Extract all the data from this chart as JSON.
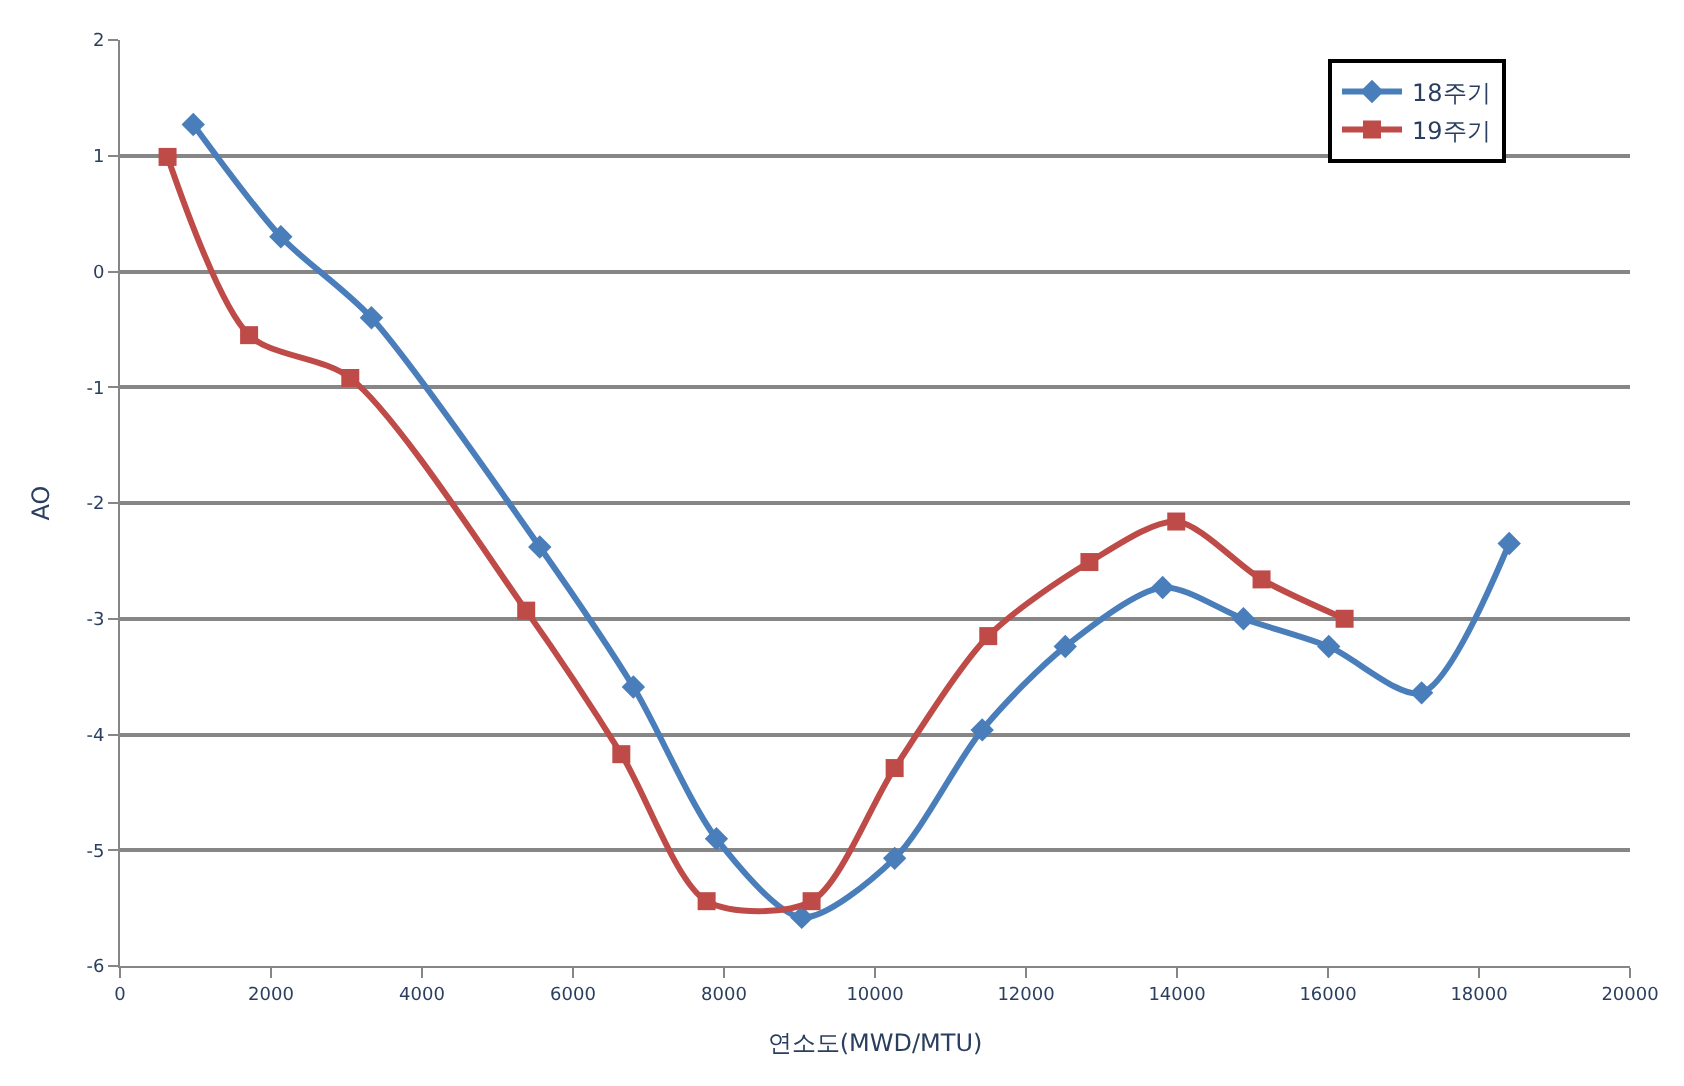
{
  "chart_data": {
    "type": "line",
    "xlabel": "연소도(MWD/MTU)",
    "ylabel": "AO",
    "xlim": [
      0,
      20000
    ],
    "xticks": [
      0,
      2000,
      4000,
      6000,
      8000,
      10000,
      12000,
      14000,
      16000,
      18000,
      20000
    ],
    "ylim": [
      -6,
      2
    ],
    "yticks": [
      -6,
      -5,
      -4,
      -3,
      -2,
      -1,
      0,
      1,
      2
    ],
    "grid": "y",
    "legend": "top right",
    "series": [
      {
        "name": "18주기",
        "color": "#4a7ebb",
        "marker": "diamond",
        "x": [
          970,
          2130,
          3330,
          5560,
          6800,
          7900,
          9030,
          10260,
          11420,
          12520,
          13810,
          14880,
          16010,
          17240,
          18400
        ],
        "values": [
          1.27,
          0.3,
          -0.4,
          -2.38,
          -3.59,
          -4.9,
          -5.58,
          -5.07,
          -3.96,
          -3.24,
          -2.73,
          -3.0,
          -3.24,
          -3.64,
          -2.35
        ]
      },
      {
        "name": "19주기",
        "color": "#be4b48",
        "marker": "square",
        "x": [
          630,
          1710,
          3050,
          5380,
          6640,
          7770,
          9160,
          10260,
          11500,
          12840,
          13990,
          15120,
          16220
        ],
        "values": [
          0.99,
          -0.55,
          -0.92,
          -2.93,
          -4.17,
          -5.44,
          -5.44,
          -4.29,
          -3.15,
          -2.51,
          -2.16,
          -2.66,
          -3.0
        ]
      }
    ]
  }
}
